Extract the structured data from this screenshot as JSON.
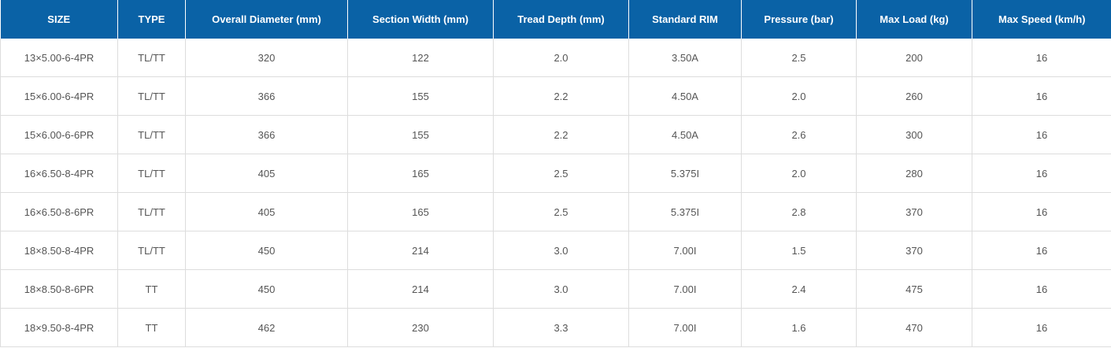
{
  "table": {
    "headers": [
      "SIZE",
      "TYPE",
      "Overall Diameter (mm)",
      "Section Width (mm)",
      "Tread Depth (mm)",
      "Standard RIM",
      "Pressure (bar)",
      "Max Load (kg)",
      "Max Speed (km/h)"
    ],
    "rows": [
      [
        "13×5.00-6-4PR",
        "TL/TT",
        "320",
        "122",
        "2.0",
        "3.50A",
        "2.5",
        "200",
        "16"
      ],
      [
        "15×6.00-6-4PR",
        "TL/TT",
        "366",
        "155",
        "2.2",
        "4.50A",
        "2.0",
        "260",
        "16"
      ],
      [
        "15×6.00-6-6PR",
        "TL/TT",
        "366",
        "155",
        "2.2",
        "4.50A",
        "2.6",
        "300",
        "16"
      ],
      [
        "16×6.50-8-4PR",
        "TL/TT",
        "405",
        "165",
        "2.5",
        "5.375I",
        "2.0",
        "280",
        "16"
      ],
      [
        "16×6.50-8-6PR",
        "TL/TT",
        "405",
        "165",
        "2.5",
        "5.375I",
        "2.8",
        "370",
        "16"
      ],
      [
        "18×8.50-8-4PR",
        "TL/TT",
        "450",
        "214",
        "3.0",
        "7.00I",
        "1.5",
        "370",
        "16"
      ],
      [
        "18×8.50-8-6PR",
        "TT",
        "450",
        "214",
        "3.0",
        "7.00I",
        "2.4",
        "475",
        "16"
      ],
      [
        "18×9.50-8-4PR",
        "TT",
        "462",
        "230",
        "3.3",
        "7.00I",
        "1.6",
        "470",
        "16"
      ]
    ]
  }
}
